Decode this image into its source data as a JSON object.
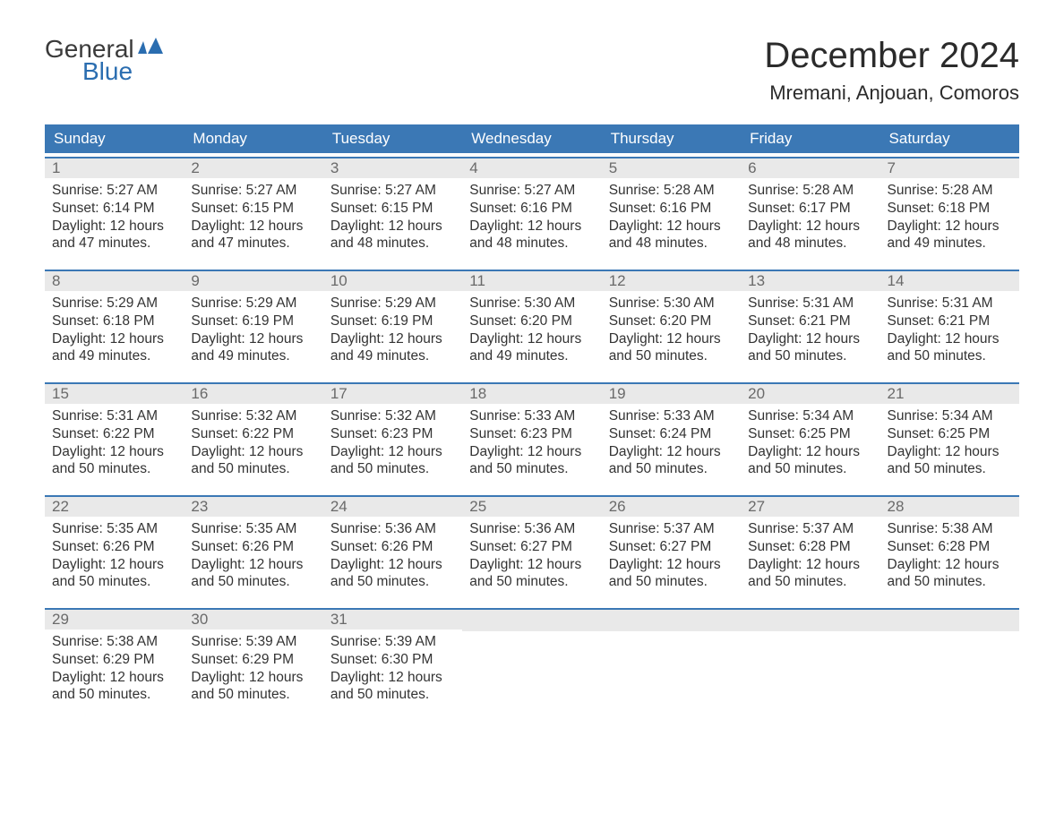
{
  "logo": {
    "text_general": "General",
    "text_blue": "Blue",
    "icon_color": "#2a6db0",
    "general_color": "#3a3a3a",
    "blue_color": "#2a6db0"
  },
  "header": {
    "month_title": "December 2024",
    "location": "Mremani, Anjouan, Comoros",
    "title_fontsize": 40,
    "location_fontsize": 22,
    "text_color": "#2b2b2b"
  },
  "calendar": {
    "header_bg": "#3b78b5",
    "header_text_color": "#ffffff",
    "daynum_bg": "#e9e9e9",
    "daynum_color": "#6a6a6a",
    "border_color": "#3b78b5",
    "body_text_color": "#333333",
    "background_color": "#ffffff",
    "day_names": [
      "Sunday",
      "Monday",
      "Tuesday",
      "Wednesday",
      "Thursday",
      "Friday",
      "Saturday"
    ],
    "weeks": [
      [
        {
          "n": "1",
          "sr": "Sunrise: 5:27 AM",
          "ss": "Sunset: 6:14 PM",
          "d1": "Daylight: 12 hours",
          "d2": "and 47 minutes."
        },
        {
          "n": "2",
          "sr": "Sunrise: 5:27 AM",
          "ss": "Sunset: 6:15 PM",
          "d1": "Daylight: 12 hours",
          "d2": "and 47 minutes."
        },
        {
          "n": "3",
          "sr": "Sunrise: 5:27 AM",
          "ss": "Sunset: 6:15 PM",
          "d1": "Daylight: 12 hours",
          "d2": "and 48 minutes."
        },
        {
          "n": "4",
          "sr": "Sunrise: 5:27 AM",
          "ss": "Sunset: 6:16 PM",
          "d1": "Daylight: 12 hours",
          "d2": "and 48 minutes."
        },
        {
          "n": "5",
          "sr": "Sunrise: 5:28 AM",
          "ss": "Sunset: 6:16 PM",
          "d1": "Daylight: 12 hours",
          "d2": "and 48 minutes."
        },
        {
          "n": "6",
          "sr": "Sunrise: 5:28 AM",
          "ss": "Sunset: 6:17 PM",
          "d1": "Daylight: 12 hours",
          "d2": "and 48 minutes."
        },
        {
          "n": "7",
          "sr": "Sunrise: 5:28 AM",
          "ss": "Sunset: 6:18 PM",
          "d1": "Daylight: 12 hours",
          "d2": "and 49 minutes."
        }
      ],
      [
        {
          "n": "8",
          "sr": "Sunrise: 5:29 AM",
          "ss": "Sunset: 6:18 PM",
          "d1": "Daylight: 12 hours",
          "d2": "and 49 minutes."
        },
        {
          "n": "9",
          "sr": "Sunrise: 5:29 AM",
          "ss": "Sunset: 6:19 PM",
          "d1": "Daylight: 12 hours",
          "d2": "and 49 minutes."
        },
        {
          "n": "10",
          "sr": "Sunrise: 5:29 AM",
          "ss": "Sunset: 6:19 PM",
          "d1": "Daylight: 12 hours",
          "d2": "and 49 minutes."
        },
        {
          "n": "11",
          "sr": "Sunrise: 5:30 AM",
          "ss": "Sunset: 6:20 PM",
          "d1": "Daylight: 12 hours",
          "d2": "and 49 minutes."
        },
        {
          "n": "12",
          "sr": "Sunrise: 5:30 AM",
          "ss": "Sunset: 6:20 PM",
          "d1": "Daylight: 12 hours",
          "d2": "and 50 minutes."
        },
        {
          "n": "13",
          "sr": "Sunrise: 5:31 AM",
          "ss": "Sunset: 6:21 PM",
          "d1": "Daylight: 12 hours",
          "d2": "and 50 minutes."
        },
        {
          "n": "14",
          "sr": "Sunrise: 5:31 AM",
          "ss": "Sunset: 6:21 PM",
          "d1": "Daylight: 12 hours",
          "d2": "and 50 minutes."
        }
      ],
      [
        {
          "n": "15",
          "sr": "Sunrise: 5:31 AM",
          "ss": "Sunset: 6:22 PM",
          "d1": "Daylight: 12 hours",
          "d2": "and 50 minutes."
        },
        {
          "n": "16",
          "sr": "Sunrise: 5:32 AM",
          "ss": "Sunset: 6:22 PM",
          "d1": "Daylight: 12 hours",
          "d2": "and 50 minutes."
        },
        {
          "n": "17",
          "sr": "Sunrise: 5:32 AM",
          "ss": "Sunset: 6:23 PM",
          "d1": "Daylight: 12 hours",
          "d2": "and 50 minutes."
        },
        {
          "n": "18",
          "sr": "Sunrise: 5:33 AM",
          "ss": "Sunset: 6:23 PM",
          "d1": "Daylight: 12 hours",
          "d2": "and 50 minutes."
        },
        {
          "n": "19",
          "sr": "Sunrise: 5:33 AM",
          "ss": "Sunset: 6:24 PM",
          "d1": "Daylight: 12 hours",
          "d2": "and 50 minutes."
        },
        {
          "n": "20",
          "sr": "Sunrise: 5:34 AM",
          "ss": "Sunset: 6:25 PM",
          "d1": "Daylight: 12 hours",
          "d2": "and 50 minutes."
        },
        {
          "n": "21",
          "sr": "Sunrise: 5:34 AM",
          "ss": "Sunset: 6:25 PM",
          "d1": "Daylight: 12 hours",
          "d2": "and 50 minutes."
        }
      ],
      [
        {
          "n": "22",
          "sr": "Sunrise: 5:35 AM",
          "ss": "Sunset: 6:26 PM",
          "d1": "Daylight: 12 hours",
          "d2": "and 50 minutes."
        },
        {
          "n": "23",
          "sr": "Sunrise: 5:35 AM",
          "ss": "Sunset: 6:26 PM",
          "d1": "Daylight: 12 hours",
          "d2": "and 50 minutes."
        },
        {
          "n": "24",
          "sr": "Sunrise: 5:36 AM",
          "ss": "Sunset: 6:26 PM",
          "d1": "Daylight: 12 hours",
          "d2": "and 50 minutes."
        },
        {
          "n": "25",
          "sr": "Sunrise: 5:36 AM",
          "ss": "Sunset: 6:27 PM",
          "d1": "Daylight: 12 hours",
          "d2": "and 50 minutes."
        },
        {
          "n": "26",
          "sr": "Sunrise: 5:37 AM",
          "ss": "Sunset: 6:27 PM",
          "d1": "Daylight: 12 hours",
          "d2": "and 50 minutes."
        },
        {
          "n": "27",
          "sr": "Sunrise: 5:37 AM",
          "ss": "Sunset: 6:28 PM",
          "d1": "Daylight: 12 hours",
          "d2": "and 50 minutes."
        },
        {
          "n": "28",
          "sr": "Sunrise: 5:38 AM",
          "ss": "Sunset: 6:28 PM",
          "d1": "Daylight: 12 hours",
          "d2": "and 50 minutes."
        }
      ],
      [
        {
          "n": "29",
          "sr": "Sunrise: 5:38 AM",
          "ss": "Sunset: 6:29 PM",
          "d1": "Daylight: 12 hours",
          "d2": "and 50 minutes."
        },
        {
          "n": "30",
          "sr": "Sunrise: 5:39 AM",
          "ss": "Sunset: 6:29 PM",
          "d1": "Daylight: 12 hours",
          "d2": "and 50 minutes."
        },
        {
          "n": "31",
          "sr": "Sunrise: 5:39 AM",
          "ss": "Sunset: 6:30 PM",
          "d1": "Daylight: 12 hours",
          "d2": "and 50 minutes."
        },
        null,
        null,
        null,
        null
      ]
    ]
  }
}
